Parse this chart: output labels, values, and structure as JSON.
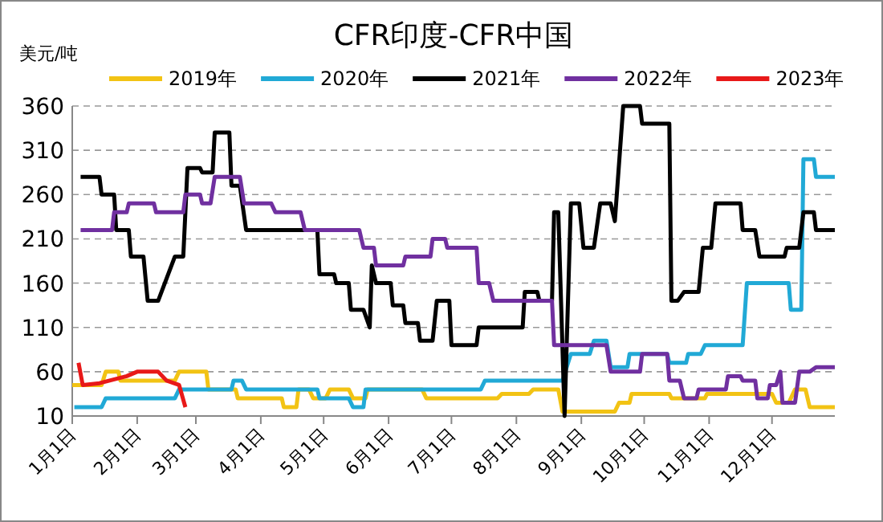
{
  "chart_data": {
    "type": "line",
    "title": "CFR印度-CFR中国",
    "ylabel": "美元/吨",
    "legend": "top",
    "grid": "y",
    "ylim": [
      10,
      360
    ],
    "yticks": [
      10,
      60,
      110,
      160,
      210,
      260,
      310,
      360
    ],
    "xlim": [
      "--01-01",
      "--12-31"
    ],
    "xticks": [
      {
        "value": "--01-01",
        "label": "1月1日"
      },
      {
        "value": "--02-01",
        "label": "2月1日"
      },
      {
        "value": "--03-01",
        "label": "3月1日"
      },
      {
        "value": "--04-01",
        "label": "4月1日"
      },
      {
        "value": "--05-01",
        "label": "5月1日"
      },
      {
        "value": "--06-01",
        "label": "6月1日"
      },
      {
        "value": "--07-01",
        "label": "7月1日"
      },
      {
        "value": "--08-01",
        "label": "8月1日"
      },
      {
        "value": "--09-01",
        "label": "9月1日"
      },
      {
        "value": "--10-01",
        "label": "10月1日"
      },
      {
        "value": "--11-01",
        "label": "11月1日"
      },
      {
        "value": "--12-01",
        "label": "12月1日"
      }
    ],
    "series": [
      {
        "name": "2019年",
        "color": "#f2c314",
        "x": [
          "--01-01",
          "--01-15",
          "--01-17",
          "--01-23",
          "--01-24",
          "--02-19",
          "--02-21",
          "--03-06",
          "--03-07",
          "--03-20",
          "--03-21",
          "--04-11",
          "--04-12",
          "--04-18",
          "--04-19",
          "--04-24",
          "--04-26",
          "--05-02",
          "--05-04",
          "--05-13",
          "--05-15",
          "--05-21",
          "--05-22",
          "--06-17",
          "--06-19",
          "--07-23",
          "--07-25",
          "--08-07",
          "--08-09",
          "--08-21",
          "--08-23",
          "--09-17",
          "--09-19",
          "--09-24",
          "--09-25",
          "--10-13",
          "--10-14",
          "--10-30",
          "--10-31",
          "--12-01",
          "--12-03",
          "--12-09",
          "--12-12",
          "--12-17",
          "--12-19",
          "--12-31"
        ],
        "values": [
          45,
          45,
          60,
          60,
          50,
          50,
          60,
          60,
          40,
          40,
          30,
          30,
          20,
          20,
          40,
          40,
          30,
          30,
          40,
          40,
          30,
          30,
          40,
          40,
          30,
          30,
          35,
          35,
          40,
          40,
          15,
          15,
          25,
          25,
          35,
          35,
          30,
          30,
          35,
          35,
          25,
          25,
          40,
          40,
          20,
          20
        ]
      },
      {
        "name": "2020年",
        "color": "#21a9d6",
        "x": [
          "--01-02",
          "--01-15",
          "--01-17",
          "--02-19",
          "--02-21",
          "--03-18",
          "--03-19",
          "--03-23",
          "--03-25",
          "--04-28",
          "--04-29",
          "--05-13",
          "--05-15",
          "--05-20",
          "--05-21",
          "--07-15",
          "--07-17",
          "--08-23",
          "--08-27",
          "--09-05",
          "--09-07",
          "--09-13",
          "--09-15",
          "--09-23",
          "--09-24",
          "--10-12",
          "--10-13",
          "--10-21",
          "--10-22",
          "--10-28",
          "--10-30",
          "--11-17",
          "--11-19",
          "--12-09",
          "--12-10",
          "--12-15",
          "--12-16",
          "--12-21",
          "--12-22",
          "--12-31"
        ],
        "values": [
          20,
          20,
          30,
          30,
          40,
          40,
          50,
          50,
          40,
          40,
          30,
          30,
          20,
          20,
          40,
          40,
          50,
          50,
          80,
          80,
          95,
          95,
          65,
          65,
          80,
          80,
          70,
          70,
          80,
          80,
          90,
          90,
          160,
          160,
          130,
          130,
          300,
          300,
          280,
          280
        ]
      },
      {
        "name": "2021年",
        "color": "#000000",
        "x": [
          "--01-05",
          "--01-14",
          "--01-15",
          "--01-21",
          "--01-22",
          "--01-28",
          "--01-29",
          "--02-04",
          "--02-06",
          "--02-11",
          "--02-19",
          "--02-23",
          "--02-25",
          "--03-03",
          "--03-04",
          "--03-09",
          "--03-10",
          "--03-17",
          "--03-18",
          "--03-22",
          "--03-25",
          "--04-28",
          "--04-29",
          "--05-06",
          "--05-07",
          "--05-13",
          "--05-14",
          "--05-20",
          "--05-23",
          "--05-24",
          "--05-26",
          "--06-02",
          "--06-03",
          "--06-08",
          "--06-09",
          "--06-15",
          "--06-16",
          "--06-22",
          "--06-24",
          "--06-30",
          "--07-01",
          "--07-13",
          "--07-14",
          "--08-04",
          "--08-05",
          "--08-11",
          "--08-12",
          "--08-18",
          "--08-19",
          "--08-21",
          "--08-24",
          "--08-27",
          "--08-31",
          "--09-02",
          "--09-07",
          "--09-10",
          "--09-15",
          "--09-17",
          "--09-21",
          "--09-29",
          "--09-30",
          "--10-13",
          "--10-14",
          "--10-17",
          "--10-20",
          "--10-27",
          "--10-29",
          "--11-02",
          "--11-04",
          "--11-16",
          "--11-17",
          "--11-23",
          "--11-25",
          "--12-07",
          "--12-08",
          "--12-14",
          "--12-16",
          "--12-21",
          "--12-22",
          "--12-31"
        ],
        "values": [
          280,
          280,
          260,
          260,
          220,
          220,
          190,
          190,
          140,
          140,
          190,
          190,
          290,
          290,
          285,
          285,
          330,
          330,
          270,
          270,
          220,
          220,
          170,
          170,
          160,
          160,
          130,
          130,
          110,
          180,
          160,
          160,
          135,
          135,
          115,
          115,
          95,
          95,
          140,
          140,
          90,
          90,
          110,
          110,
          150,
          150,
          140,
          140,
          240,
          240,
          10,
          250,
          250,
          200,
          200,
          250,
          250,
          230,
          360,
          360,
          340,
          340,
          140,
          140,
          150,
          150,
          200,
          200,
          250,
          250,
          220,
          220,
          190,
          190,
          200,
          200,
          240,
          240,
          220,
          220
        ]
      },
      {
        "name": "2022年",
        "color": "#7030a0",
        "x": [
          "--01-05",
          "--01-20",
          "--01-21",
          "--01-27",
          "--01-28",
          "--02-09",
          "--02-10",
          "--02-23",
          "--02-24",
          "--03-03",
          "--03-04",
          "--03-08",
          "--03-10",
          "--03-22",
          "--03-24",
          "--04-06",
          "--04-08",
          "--04-20",
          "--04-22",
          "--05-18",
          "--05-20",
          "--05-25",
          "--05-26",
          "--06-08",
          "--06-09",
          "--06-21",
          "--06-22",
          "--06-28",
          "--06-29",
          "--07-13",
          "--07-14",
          "--07-19",
          "--07-21",
          "--08-18",
          "--08-19",
          "--09-13",
          "--09-15",
          "--09-29",
          "--09-30",
          "--10-12",
          "--10-13",
          "--10-18",
          "--10-20",
          "--10-26",
          "--10-27",
          "--11-09",
          "--11-10",
          "--11-16",
          "--11-17",
          "--11-23",
          "--11-24",
          "--11-29",
          "--11-30",
          "--12-03",
          "--12-05",
          "--12-06",
          "--12-12",
          "--12-14",
          "--12-19",
          "--12-22",
          "--12-31"
        ],
        "values": [
          220,
          220,
          240,
          240,
          250,
          250,
          240,
          240,
          260,
          260,
          250,
          250,
          280,
          280,
          250,
          250,
          240,
          240,
          220,
          220,
          200,
          200,
          180,
          180,
          190,
          190,
          210,
          210,
          200,
          200,
          160,
          160,
          140,
          140,
          90,
          90,
          60,
          60,
          80,
          80,
          50,
          50,
          30,
          30,
          40,
          40,
          55,
          55,
          50,
          50,
          30,
          30,
          45,
          45,
          60,
          25,
          25,
          60,
          60,
          65,
          65
        ]
      },
      {
        "name": "2023年",
        "color": "#e81919",
        "x": [
          "--01-04",
          "--01-06",
          "--01-14",
          "--01-27",
          "--02-01",
          "--02-11",
          "--02-13",
          "--02-15",
          "--02-21",
          "--02-24"
        ],
        "values": [
          70,
          45,
          47,
          55,
          60,
          60,
          55,
          50,
          45,
          20
        ]
      }
    ]
  }
}
